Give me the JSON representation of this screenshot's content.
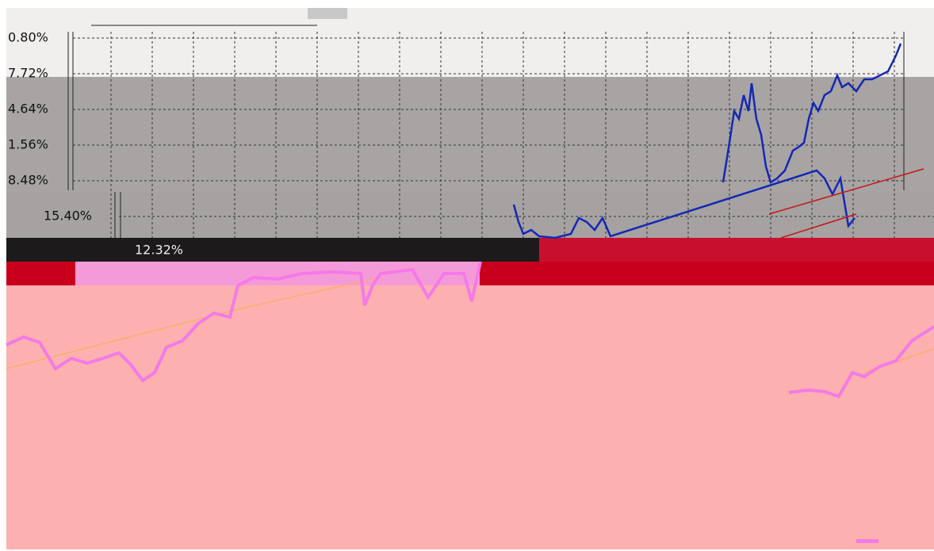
{
  "top_panel": {
    "y_labels": [
      "0.80%",
      "7.72%",
      "4.64%",
      "1.56%",
      "8.48%"
    ]
  },
  "middle_panel": {
    "y_labels": [
      "15.40%"
    ]
  },
  "lower_panel": {
    "y_labels": [
      "12.32%"
    ]
  }
}
